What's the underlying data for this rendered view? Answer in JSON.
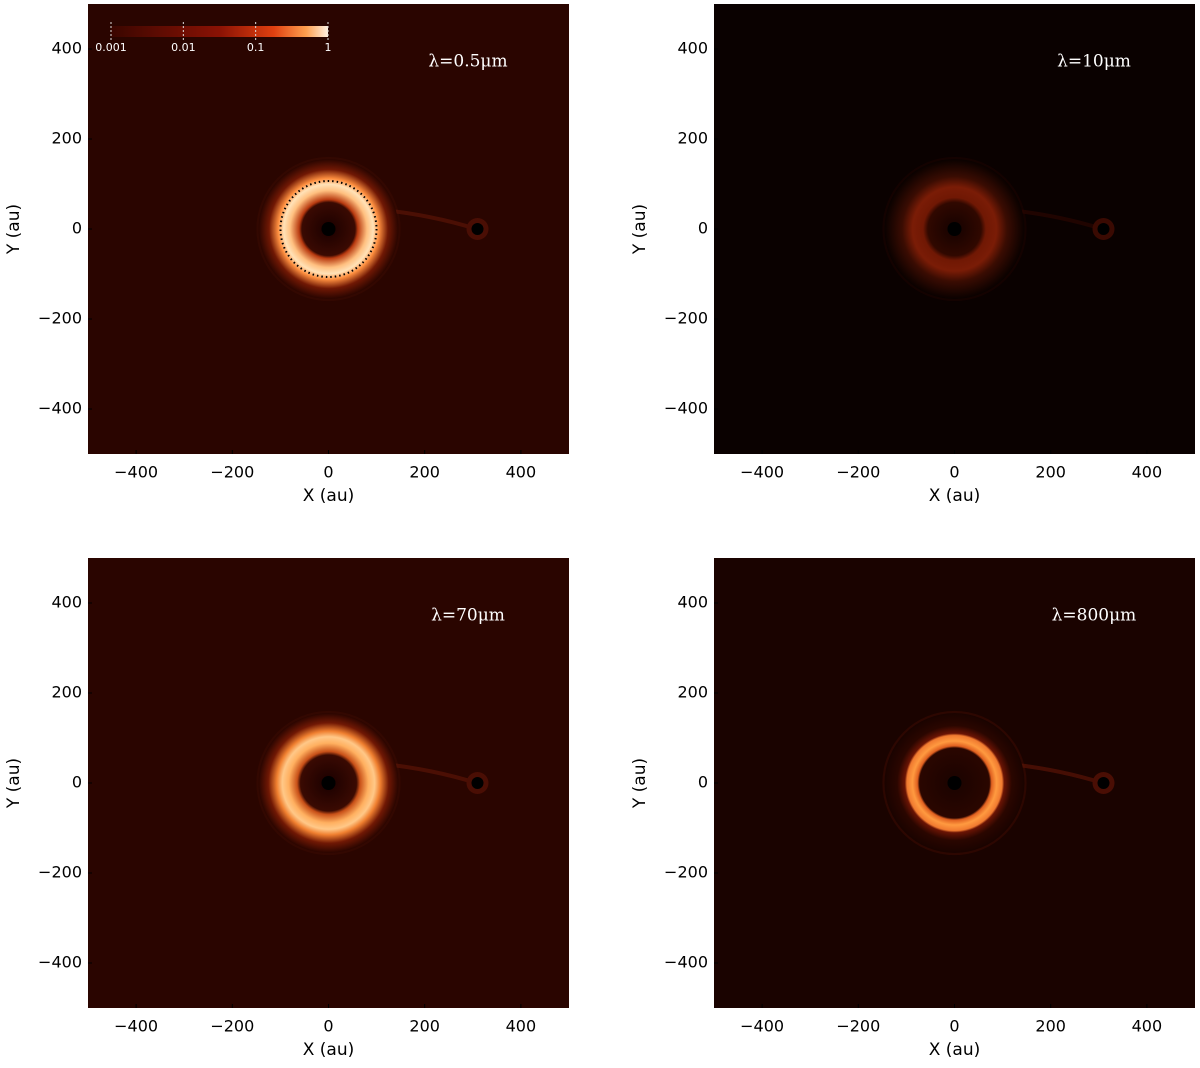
{
  "chart_data": [
    {
      "type": "image",
      "annotation": "λ=0.5μm",
      "x_label": "X (au)",
      "y_label": "Y (au)",
      "xlim": [
        -500,
        500
      ],
      "ylim": [
        -500,
        500
      ],
      "xticks": [
        {
          "value": -400,
          "label": "−400"
        },
        {
          "value": -200,
          "label": "−200"
        },
        0,
        200,
        400
      ],
      "yticks": [
        {
          "value": -400,
          "label": "−400"
        },
        {
          "value": -200,
          "label": "−200"
        },
        0,
        200,
        400
      ],
      "colorbar": {
        "scale": "log",
        "lim": [
          0.001,
          1
        ],
        "ticks": [
          0.001,
          0.01,
          0.1,
          1
        ]
      }
    },
    {
      "type": "image",
      "annotation": "λ=10μm",
      "x_label": "X (au)",
      "y_label": "Y (au)",
      "xlim": [
        -500,
        500
      ],
      "ylim": [
        -500,
        500
      ],
      "xticks": [
        {
          "value": -400,
          "label": "−400"
        },
        {
          "value": -200,
          "label": "−200"
        },
        0,
        200,
        400
      ],
      "yticks": [
        {
          "value": -400,
          "label": "−400"
        },
        {
          "value": -200,
          "label": "−200"
        },
        0,
        200,
        400
      ]
    },
    {
      "type": "image",
      "annotation": "λ=70μm",
      "x_label": "X (au)",
      "y_label": "Y (au)",
      "xlim": [
        -500,
        500
      ],
      "ylim": [
        -500,
        500
      ],
      "xticks": [
        {
          "value": -400,
          "label": "−400"
        },
        {
          "value": -200,
          "label": "−200"
        },
        0,
        200,
        400
      ],
      "yticks": [
        {
          "value": -400,
          "label": "−400"
        },
        {
          "value": -200,
          "label": "−200"
        },
        0,
        200,
        400
      ]
    },
    {
      "type": "image",
      "annotation": "λ=800μm",
      "x_label": "X (au)",
      "y_label": "Y (au)",
      "xlim": [
        -500,
        500
      ],
      "ylim": [
        -500,
        500
      ],
      "xticks": [
        {
          "value": -400,
          "label": "−400"
        },
        {
          "value": -200,
          "label": "−200"
        },
        0,
        200,
        400
      ],
      "yticks": [
        {
          "value": -400,
          "label": "−400"
        },
        {
          "value": -200,
          "label": "−200"
        },
        0,
        200,
        400
      ]
    }
  ]
}
